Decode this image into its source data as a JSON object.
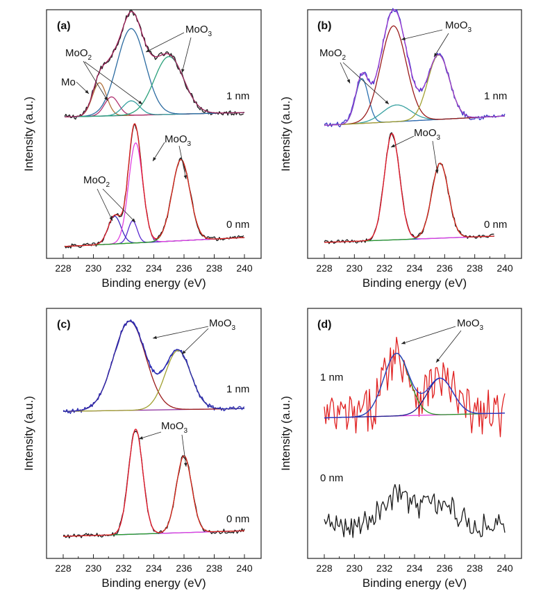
{
  "chart_data": [
    {
      "type": "line",
      "panel_label": "(a)",
      "xlabel": "Binding energy (eV)",
      "ylabel": "Intensity (a.u.)",
      "xlim": [
        228,
        240
      ],
      "xticks": [
        228,
        230,
        232,
        234,
        236,
        238,
        240
      ],
      "spectra": [
        {
          "label": "1 nm",
          "data_range": [
            228.1,
            240
          ],
          "background": {
            "left": 0.06,
            "right": 0.1
          },
          "noise": 0.025,
          "colors": {
            "raw": "#1a1a1a",
            "envelope": "#a0205a",
            "background": "#7a2a7a"
          },
          "peaks": [
            {
              "label": "Mo",
              "center": 230.4,
              "fwhm": 1.1,
              "height": 0.3,
              "color": "#b0703a"
            },
            {
              "label": "MoO2",
              "center": 231.2,
              "fwhm": 1.1,
              "height": 0.17,
              "color": "#b03070"
            },
            {
              "label": "MoO2",
              "center": 232.5,
              "fwhm": 1.3,
              "height": 0.13,
              "color": "#36a0a0"
            },
            {
              "label": "MoO3",
              "center": 232.5,
              "fwhm": 2.2,
              "height": 0.78,
              "color": "#2a6aa0"
            },
            {
              "label": "MoO3",
              "center": 235.0,
              "fwhm": 2.3,
              "height": 0.52,
              "color": "#2aa07a"
            }
          ]
        },
        {
          "label": "0 nm",
          "data_range": [
            228.1,
            240
          ],
          "background": {
            "left": 0.02,
            "right": 0.1
          },
          "noise": 0.02,
          "colors": {
            "raw": "#1a1a1a",
            "envelope": "#e02020",
            "background": "#2a8a2a"
          },
          "peaks": [
            {
              "label": "MoO2",
              "center": 231.4,
              "fwhm": 1.0,
              "height": 0.25,
              "color": "#3a2ac0"
            },
            {
              "label": "MoO2",
              "center": 232.6,
              "fwhm": 0.7,
              "height": 0.2,
              "color": "#5a2ad0"
            },
            {
              "label": "MoO3",
              "center": 232.8,
              "fwhm": 1.1,
              "height": 0.9,
              "color": "#e040e0"
            },
            {
              "label": "MoO3",
              "center": 235.8,
              "fwhm": 1.4,
              "height": 0.73,
              "color": "#2a9a2a"
            }
          ]
        }
      ]
    },
    {
      "type": "line",
      "panel_label": "(b)",
      "xlabel": "Binding energy (eV)",
      "ylabel": "Intensity (a.u.)",
      "xlim": [
        228,
        240
      ],
      "xticks": [
        228,
        230,
        232,
        234,
        236,
        238,
        240
      ],
      "spectra": [
        {
          "label": "1 nm",
          "data_range": [
            228.0,
            240
          ],
          "background": {
            "left": 0.05,
            "right": 0.14
          },
          "noise": 0.025,
          "colors": {
            "raw": "#3a3ac8",
            "envelope": "#9a3ad0",
            "background": "#8a3a9a"
          },
          "peaks": [
            {
              "label": "MoO2",
              "center": 230.5,
              "fwhm": 1.0,
              "height": 0.43,
              "color": "#2a70b0"
            },
            {
              "label": "MoO2",
              "center": 232.8,
              "fwhm": 2.2,
              "height": 0.16,
              "color": "#36a0a0"
            },
            {
              "label": "MoO3",
              "center": 232.6,
              "fwhm": 2.0,
              "height": 0.92,
              "color": "#9a1a1a"
            },
            {
              "label": "MoO3",
              "center": 235.6,
              "fwhm": 1.7,
              "height": 0.62,
              "color": "#a0a030"
            }
          ]
        },
        {
          "label": "0 nm",
          "data_range": [
            228.0,
            239.3
          ],
          "background": {
            "left": 0.02,
            "right": 0.08
          },
          "noise": 0.02,
          "colors": {
            "raw": "#1a1a1a",
            "envelope": "#e02020",
            "background": "#2a3ac0"
          },
          "peaks": [
            {
              "label": "MoO3",
              "center": 232.5,
              "fwhm": 1.2,
              "height": 1.02,
              "color": "#e040e0"
            },
            {
              "label": "MoO3",
              "center": 235.7,
              "fwhm": 1.3,
              "height": 0.72,
              "color": "#2a9a2a"
            }
          ]
        }
      ]
    },
    {
      "type": "line",
      "panel_label": "(c)",
      "xlabel": "Binding energy (eV)",
      "ylabel": "Intensity (a.u.)",
      "xlim": [
        228,
        240
      ],
      "xticks": [
        228,
        230,
        232,
        234,
        236,
        238,
        240
      ],
      "spectra": [
        {
          "label": "1 nm",
          "data_range": [
            228.0,
            240
          ],
          "background": {
            "left": 0.02,
            "right": 0.05
          },
          "noise": 0.025,
          "colors": {
            "raw": "#2a2ab0",
            "envelope": "#2a2ab0",
            "background": "#8a2a9a"
          },
          "peaks": [
            {
              "label": "MoO3",
              "center": 232.4,
              "fwhm": 2.5,
              "height": 0.95,
              "color": "#9a1a1a"
            },
            {
              "label": "MoO3",
              "center": 235.6,
              "fwhm": 2.0,
              "height": 0.63,
              "color": "#a0a030"
            }
          ]
        },
        {
          "label": "0 nm",
          "data_range": [
            228.0,
            240
          ],
          "background": {
            "left": 0.02,
            "right": 0.08
          },
          "noise": 0.025,
          "colors": {
            "raw": "#1a1a1a",
            "envelope": "#e02020",
            "background": "#2a3ac0"
          },
          "peaks": [
            {
              "label": "MoO3",
              "center": 232.8,
              "fwhm": 1.1,
              "height": 1.12,
              "color": "#e040e0"
            },
            {
              "label": "MoO3",
              "center": 236.0,
              "fwhm": 1.2,
              "height": 0.82,
              "color": "#2a9a2a"
            }
          ]
        }
      ]
    },
    {
      "type": "line",
      "panel_label": "(d)",
      "xlabel": "Binding energy (eV)",
      "ylabel": "Intensity (a.u.)",
      "xlim": [
        228,
        240
      ],
      "xticks": [
        228,
        230,
        232,
        234,
        236,
        238,
        240
      ],
      "spectra": [
        {
          "label": "1 nm",
          "data_range": [
            228.0,
            240
          ],
          "background": {
            "left": 0.02,
            "right": 0.06
          },
          "noise": 0.2,
          "colors": {
            "raw": "#e02020",
            "envelope": "#2a3ac8",
            "background": "#e040e0"
          },
          "peaks": [
            {
              "label": "MoO3",
              "center": 232.8,
              "fwhm": 2.0,
              "height": 0.53,
              "color": "#2a9a2a"
            },
            {
              "label": "MoO3",
              "center": 235.7,
              "fwhm": 2.0,
              "height": 0.31,
              "color": "#1a1a8a"
            }
          ]
        },
        {
          "label": "0 nm",
          "data_range": [
            228.0,
            240
          ],
          "background": {
            "left": 0.02,
            "right": 0.02
          },
          "noise": 0.11,
          "colors": {
            "raw": "#1a1a1a"
          },
          "peaks": [
            {
              "center": 232.8,
              "fwhm": 2.5,
              "height": 0.25
            },
            {
              "center": 235.7,
              "fwhm": 2.5,
              "height": 0.18
            }
          ]
        }
      ]
    }
  ],
  "annotations": {
    "a": {
      "mo": "Mo",
      "moo2_top": "MoO",
      "moo3_top": "MoO",
      "moo2_bottom": "MoO",
      "moo3_bottom": "MoO",
      "sub2": "2",
      "sub3": "3"
    },
    "b": {
      "moo2_top": "MoO",
      "moo3_top": "MoO",
      "moo3_bottom": "MoO",
      "sub2": "2",
      "sub3": "3"
    },
    "c": {
      "moo3_top": "MoO",
      "moo3_bottom": "MoO",
      "sub3": "3"
    },
    "d": {
      "moo3_top": "MoO",
      "sub3": "3"
    }
  }
}
